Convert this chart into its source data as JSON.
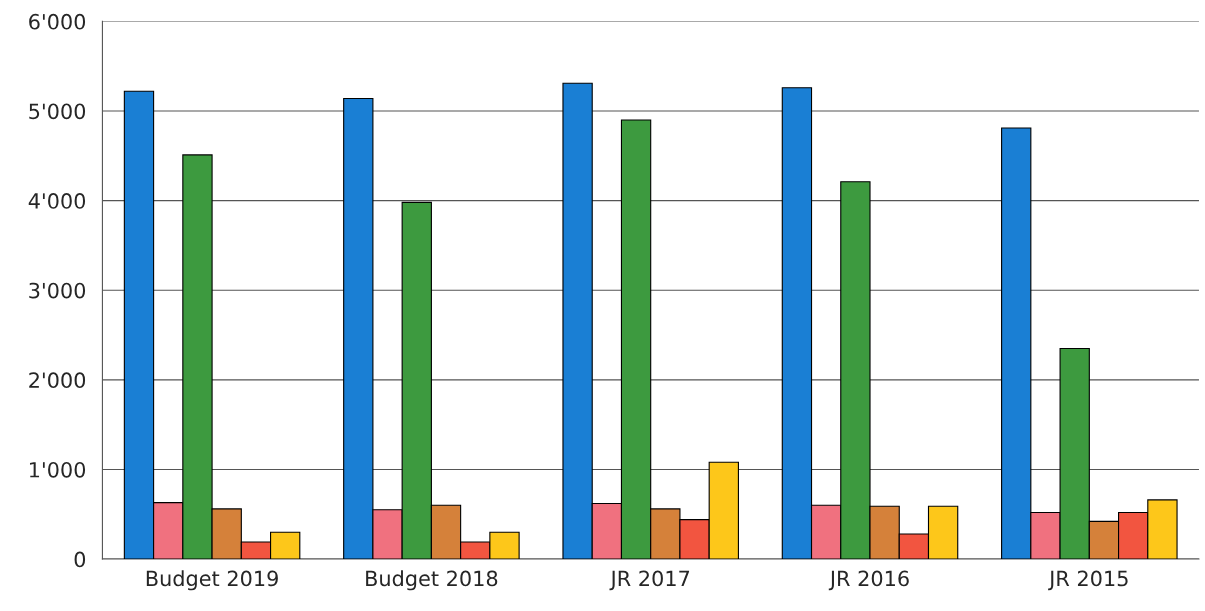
{
  "chart_data": {
    "type": "bar",
    "categories": [
      "Budget 2019",
      "Budget 2018",
      "JR 2017",
      "JR 2016",
      "JR 2015"
    ],
    "series": [
      {
        "color": "#1a7fd4",
        "values": [
          5220,
          5140,
          5310,
          5260,
          4810
        ]
      },
      {
        "color": "#f0717f",
        "values": [
          630,
          550,
          620,
          600,
          520
        ]
      },
      {
        "color": "#3d9a3f",
        "values": [
          4510,
          3980,
          4900,
          4210,
          2350
        ]
      },
      {
        "color": "#d5813a",
        "values": [
          560,
          600,
          560,
          590,
          420
        ]
      },
      {
        "color": "#f25540",
        "values": [
          190,
          190,
          440,
          280,
          520
        ]
      },
      {
        "color": "#fdc71a",
        "values": [
          300,
          300,
          1080,
          590,
          660
        ]
      }
    ],
    "ylim": [
      0,
      6000
    ],
    "yticks": [
      {
        "value": 0,
        "label": "0"
      },
      {
        "value": 1000,
        "label": "1'000"
      },
      {
        "value": 2000,
        "label": "2'000"
      },
      {
        "value": 3000,
        "label": "3'000"
      },
      {
        "value": 4000,
        "label": "4'000"
      },
      {
        "value": 5000,
        "label": "5'000"
      },
      {
        "value": 6000,
        "label": "6'000"
      }
    ],
    "grid": "y",
    "legend": false
  }
}
